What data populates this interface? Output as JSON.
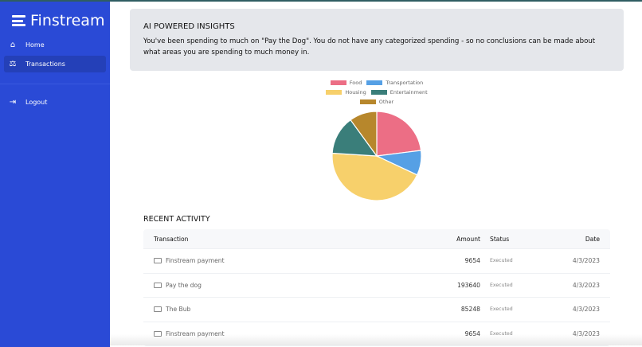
{
  "app": {
    "name": "Finstream"
  },
  "sidebar": {
    "items": [
      {
        "label": "Home",
        "icon": "home-icon"
      },
      {
        "label": "Transactions",
        "icon": "scale-icon",
        "active": true
      },
      {
        "label": "Logout",
        "icon": "logout-icon"
      }
    ]
  },
  "insights": {
    "title": "AI POWERED INSIGHTS",
    "text": "You've been spending to much on \"Pay the Dog\". You do not have any categorized spending - so no conclusions can be made about what areas you are spending to much money in."
  },
  "chart_data": {
    "type": "pie",
    "legend_position": "top",
    "unit": "approx. percent",
    "categories": [
      "Food",
      "Transportation",
      "Housing",
      "Entertainment",
      "Other"
    ],
    "values": [
      23,
      9,
      44,
      14,
      10
    ],
    "colors": [
      "#ec6e85",
      "#56a0e5",
      "#f7d06b",
      "#3a7e7a",
      "#b7872c"
    ]
  },
  "recent": {
    "title": "RECENT ACTIVITY",
    "columns": [
      "Transaction",
      "Amount",
      "Status",
      "Date"
    ],
    "rows": [
      {
        "name": "Finstream payment",
        "amount": "9654",
        "status": "Executed",
        "date": "4/3/2023"
      },
      {
        "name": "Pay the dog",
        "amount": "193640",
        "status": "Executed",
        "date": "4/3/2023"
      },
      {
        "name": "The Bub",
        "amount": "85248",
        "status": "Executed",
        "date": "4/3/2023"
      },
      {
        "name": "Finstream payment",
        "amount": "9654",
        "status": "Executed",
        "date": "4/3/2023"
      }
    ]
  }
}
